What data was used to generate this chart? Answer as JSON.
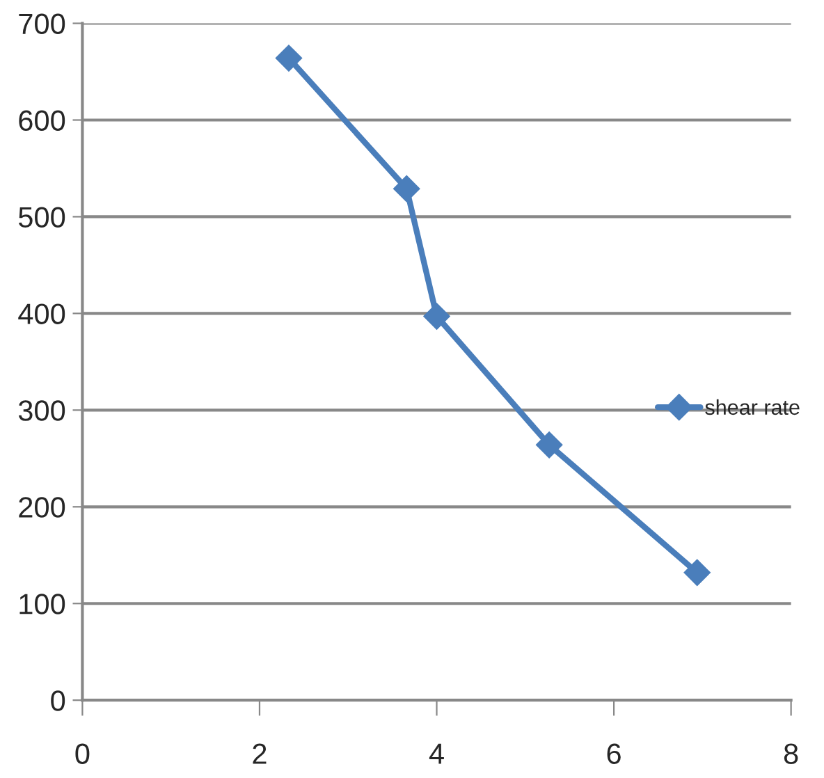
{
  "chart_data": {
    "type": "line",
    "x": [
      2.33,
      3.66,
      4.0,
      5.27,
      6.94
    ],
    "series": [
      {
        "name": "shear rate",
        "color": "#4a7ebb",
        "values": [
          664,
          529,
          397,
          264,
          132
        ]
      }
    ],
    "xlim": [
      0,
      8
    ],
    "xticks": [
      0,
      2,
      4,
      6,
      8
    ],
    "ylim": [
      0,
      700
    ],
    "yticks": [
      0,
      100,
      200,
      300,
      400,
      500,
      600,
      700
    ],
    "grid": "y",
    "legend": "right",
    "marker": "diamond",
    "line_style": "solid"
  }
}
